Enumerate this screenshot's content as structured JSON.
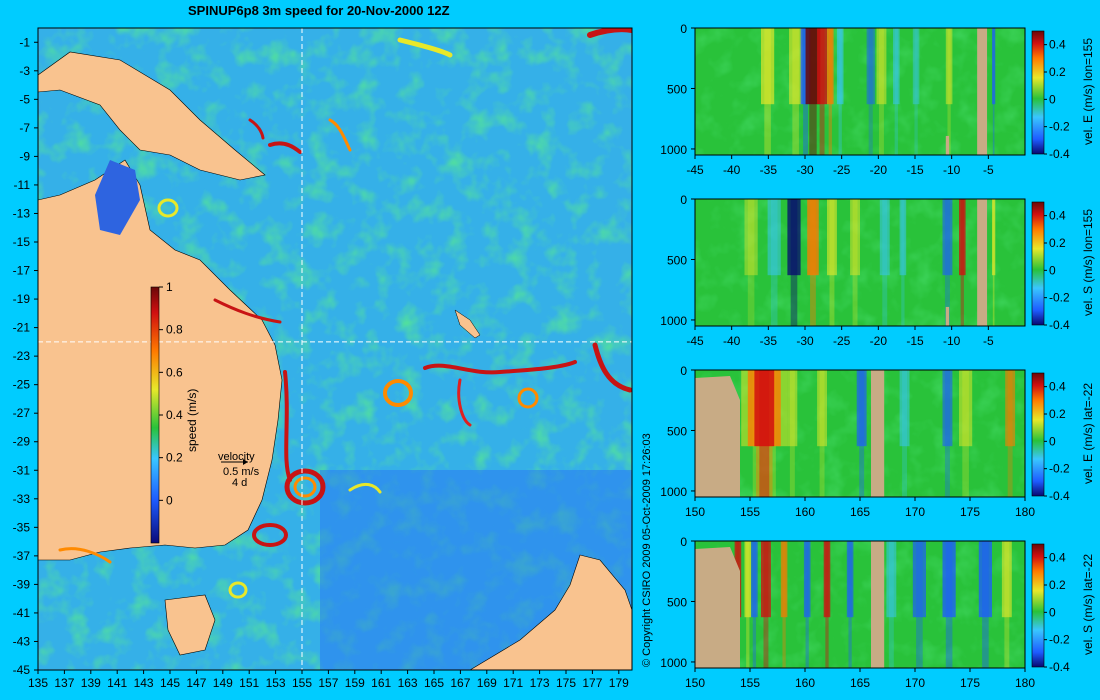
{
  "title": "SPINUP6p8 3m speed for 20-Nov-2000 12Z",
  "copyright": "© Copyright CSIRO 2009  05-Oct-2009 17:26:03",
  "colors": {
    "background": "#00ccff",
    "land": "#f9c38f",
    "section_land": "#c8ab85",
    "ocean": "#2b8cff"
  },
  "chart_data": [
    {
      "type": "heatmap",
      "name": "map",
      "title": "SPINUP6p8 3m speed for 20-Nov-2000 12Z",
      "xlim": [
        135,
        180
      ],
      "ylim": [
        -45,
        0
      ],
      "xticks": [
        "135",
        "137",
        "139",
        "141",
        "143",
        "145",
        "147",
        "149",
        "151",
        "153",
        "155",
        "157",
        "159",
        "161",
        "163",
        "165",
        "167",
        "169",
        "171",
        "173",
        "175",
        "177",
        "179"
      ],
      "yticks": [
        "-1",
        "-3",
        "-5",
        "-7",
        "-9",
        "-11",
        "-13",
        "-15",
        "-17",
        "-19",
        "-21",
        "-23",
        "-25",
        "-27",
        "-29",
        "-31",
        "-33",
        "-35",
        "-37",
        "-39",
        "-41",
        "-43",
        "-45"
      ],
      "section_lines": {
        "lon": 155,
        "lat": -22
      },
      "colorbar": {
        "label": "speed (m/s)",
        "range": [
          -0.2,
          1
        ],
        "ticks": [
          "1",
          "0.8",
          "0.6",
          "0.4",
          "0.2",
          "0"
        ]
      },
      "vector_key": {
        "label": "velocity",
        "speed": "0.5 m/s",
        "duration": "4 d"
      }
    },
    {
      "type": "heatmap",
      "name": "section-1",
      "xlim": [
        -45,
        0
      ],
      "ylim": [
        1050,
        0
      ],
      "xticks": [
        "-45",
        "-40",
        "-35",
        "-30",
        "-25",
        "-20",
        "-15",
        "-10",
        "-5"
      ],
      "yticks": [
        "0",
        "500",
        "1000"
      ],
      "colorbar": {
        "label": "vel. E (m/s) lon=155",
        "range": [
          -0.4,
          0.5
        ],
        "ticks": [
          "0.4",
          "0.2",
          "0",
          "-0.2",
          "-0.4"
        ]
      }
    },
    {
      "type": "heatmap",
      "name": "section-2",
      "xlim": [
        -45,
        0
      ],
      "ylim": [
        1050,
        0
      ],
      "xticks": [
        "-45",
        "-40",
        "-35",
        "-30",
        "-25",
        "-20",
        "-15",
        "-10",
        "-5"
      ],
      "yticks": [
        "0",
        "500",
        "1000"
      ],
      "colorbar": {
        "label": "vel. S (m/s) lon=155",
        "range": [
          -0.4,
          0.5
        ],
        "ticks": [
          "0.4",
          "0.2",
          "0",
          "-0.2",
          "-0.4"
        ]
      }
    },
    {
      "type": "heatmap",
      "name": "section-3",
      "xlim": [
        150,
        180
      ],
      "ylim": [
        1050,
        0
      ],
      "xticks": [
        "150",
        "155",
        "160",
        "165",
        "170",
        "175",
        "180"
      ],
      "yticks": [
        "0",
        "500",
        "1000"
      ],
      "colorbar": {
        "label": "vel. E (m/s) lat=-22",
        "range": [
          -0.4,
          0.5
        ],
        "ticks": [
          "0.4",
          "0.2",
          "0",
          "-0.2",
          "-0.4"
        ]
      }
    },
    {
      "type": "heatmap",
      "name": "section-4",
      "xlim": [
        150,
        180
      ],
      "ylim": [
        1050,
        0
      ],
      "xticks": [
        "150",
        "155",
        "160",
        "165",
        "170",
        "175",
        "180"
      ],
      "yticks": [
        "0",
        "500",
        "1000"
      ],
      "colorbar": {
        "label": "vel. S (m/s) lat=-22",
        "range": [
          -0.4,
          0.5
        ],
        "ticks": [
          "0.4",
          "0.2",
          "0",
          "-0.2",
          "-0.4"
        ]
      }
    }
  ]
}
